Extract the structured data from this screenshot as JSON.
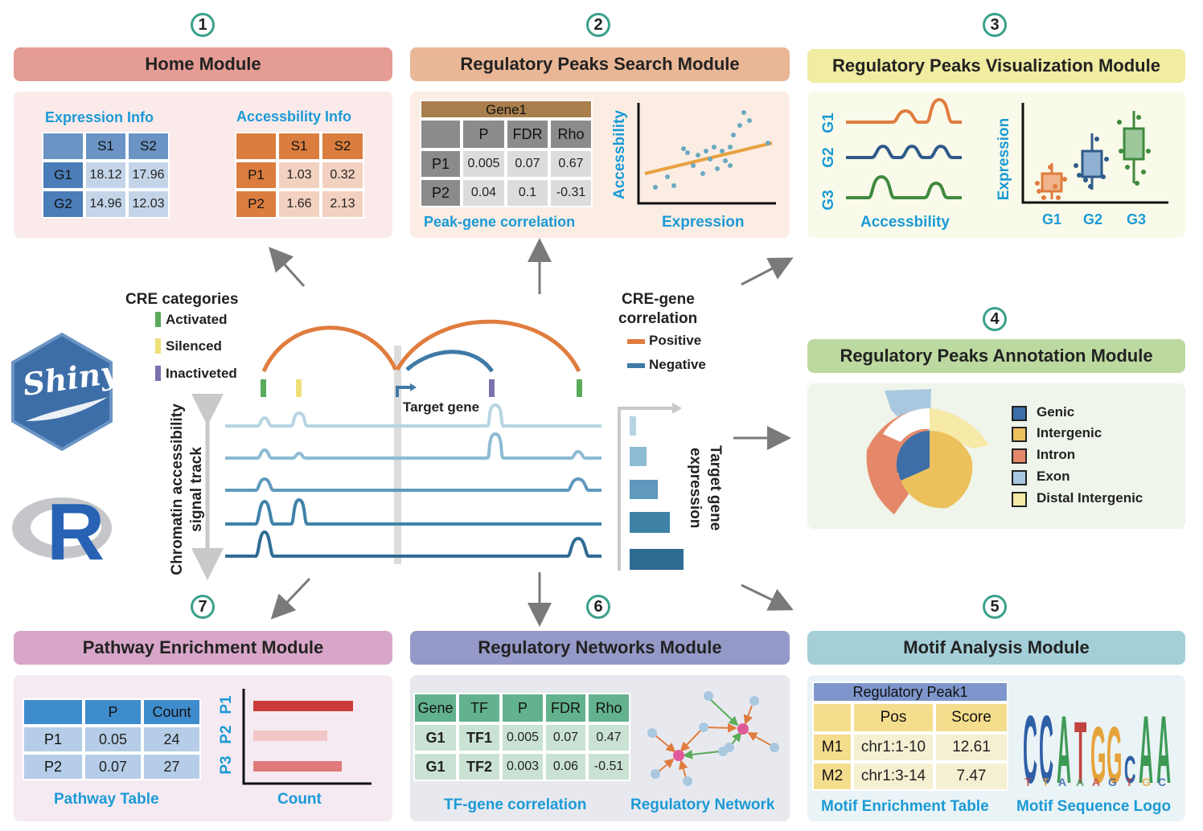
{
  "modules": {
    "m1": {
      "num": "1",
      "title": "Home Module"
    },
    "m2": {
      "num": "2",
      "title": "Regulatory Peaks Search Module"
    },
    "m3": {
      "num": "3",
      "title": "Regulatory Peaks Visualization Module"
    },
    "m4": {
      "num": "4",
      "title": "Regulatory Peaks Annotation Module"
    },
    "m5": {
      "num": "5",
      "title": "Motif Analysis Module"
    },
    "m6": {
      "num": "6",
      "title": "Regulatory Networks Module"
    },
    "m7": {
      "num": "7",
      "title": "Pathway Enrichment Module"
    }
  },
  "home": {
    "expr_title": "Expression Info",
    "acc_title": "Accessbility Info",
    "expr": {
      "cols": [
        "S1",
        "S2"
      ],
      "rows": [
        [
          "G1",
          "18.12",
          "17.96"
        ],
        [
          "G2",
          "14.96",
          "12.03"
        ]
      ]
    },
    "acc": {
      "cols": [
        "S1",
        "S2"
      ],
      "rows": [
        [
          "P1",
          "1.03",
          "0.32"
        ],
        [
          "P2",
          "1.66",
          "2.13"
        ]
      ]
    }
  },
  "search": {
    "gene": "Gene1",
    "cols": [
      "P",
      "FDR",
      "Rho"
    ],
    "rows": [
      [
        "P1",
        "0.005",
        "0.07",
        "0.67"
      ],
      [
        "P2",
        "0.04",
        "0.1",
        "-0.31"
      ]
    ],
    "caption": "Peak-gene correlation",
    "ylabel": "Accessbility",
    "xlabel": "Expression"
  },
  "vis": {
    "tracks": [
      "G1",
      "G2",
      "G3"
    ],
    "track_label": "Accessbility",
    "box_ylabel": "Expression",
    "groups": [
      "G1",
      "G2",
      "G3"
    ]
  },
  "annotation": {
    "legend": [
      {
        "label": "Genic",
        "color": "#3d6ea8"
      },
      {
        "label": "Intergenic",
        "color": "#ecc15c"
      },
      {
        "label": "Intron",
        "color": "#e5886a"
      },
      {
        "label": "Exon",
        "color": "#a9c8e0"
      },
      {
        "label": "Distal Intergenic",
        "color": "#f7e9a6"
      }
    ]
  },
  "motif": {
    "peak": "Regulatory Peak1",
    "cols": [
      "Pos",
      "Score"
    ],
    "rows": [
      [
        "M1",
        "chr1:1-10",
        "12.61"
      ],
      [
        "M2",
        "chr1:3-14",
        "7.47"
      ]
    ],
    "caption1": "Motif Enrichment Table",
    "caption2": "Motif Sequence Logo",
    "logo": "CCATGGCAA"
  },
  "network": {
    "cols": [
      "Gene",
      "TF",
      "P",
      "FDR",
      "Rho"
    ],
    "rows": [
      [
        "G1",
        "TF1",
        "0.005",
        "0.07",
        "0.47"
      ],
      [
        "G1",
        "TF2",
        "0.003",
        "0.06",
        "-0.51"
      ]
    ],
    "caption1": "TF-gene correlation",
    "caption2": "Regulatory Network"
  },
  "pathway": {
    "cols": [
      "P",
      "Count"
    ],
    "rows": [
      [
        "P1",
        "0.05",
        "24"
      ],
      [
        "P2",
        "0.07",
        "27"
      ]
    ],
    "caption1": "Pathway Table",
    "caption2": "Count",
    "bars": [
      "P1",
      "P2",
      "P3"
    ]
  },
  "center": {
    "cre_title": "CRE categories",
    "cre": [
      {
        "label": "Activated",
        "color": "#5aab5a"
      },
      {
        "label": "Silenced",
        "color": "#efe07a"
      },
      {
        "label": "Inactiveted",
        "color": "#7a72ad"
      }
    ],
    "corr_title1": "CRE-gene",
    "corr_title2": "correlation",
    "corr": [
      {
        "label": "Positive",
        "color": "#e07c3e"
      },
      {
        "label": "Negative",
        "color": "#3f79a6"
      }
    ],
    "target": "Target gene",
    "track_label1": "Chromatin accessibility",
    "track_label2": "signal track",
    "expr_label1": "Target gene",
    "expr_label2": "expression",
    "shiny": "Shiny",
    "r": "R"
  }
}
